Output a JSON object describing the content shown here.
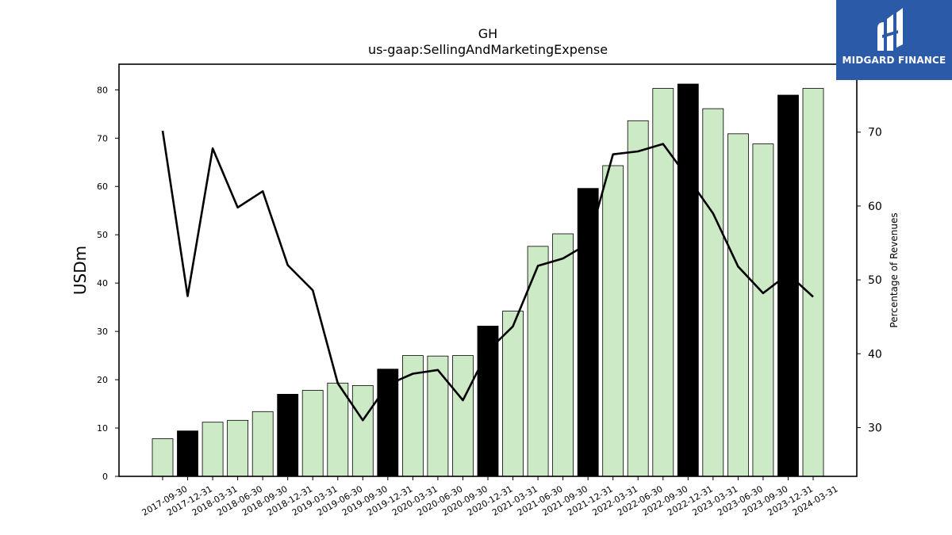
{
  "chart_data": {
    "type": "bar",
    "title": "GH",
    "subtitle": "us-gaap:SellingAndMarketingExpense",
    "ylabel": "USDm",
    "y2label": "Percentage of Revenues",
    "ylim": [
      0,
      85.3
    ],
    "y2lim": [
      23.4,
      79.2
    ],
    "yticks": [
      0,
      10,
      20,
      30,
      40,
      50,
      60,
      70,
      80
    ],
    "y2ticks": [
      30,
      40,
      50,
      60,
      70
    ],
    "categories": [
      "2017-09-30",
      "2017-12-31",
      "2018-03-31",
      "2018-06-30",
      "2018-09-30",
      "2018-12-31",
      "2019-03-31",
      "2019-06-30",
      "2019-09-30",
      "2019-12-31",
      "2020-03-31",
      "2020-06-30",
      "2020-09-30",
      "2020-12-31",
      "2021-03-31",
      "2021-06-30",
      "2021-09-30",
      "2021-12-31",
      "2022-03-31",
      "2022-06-30",
      "2022-09-30",
      "2022-12-31",
      "2023-03-31",
      "2023-06-30",
      "2023-09-30",
      "2023-12-31",
      "2024-03-31"
    ],
    "series": [
      {
        "type": "bar",
        "values": [
          7.8,
          9.4,
          11.2,
          11.6,
          13.4,
          17.0,
          17.8,
          19.3,
          18.8,
          22.2,
          25.0,
          24.9,
          25.0,
          31.1,
          34.2,
          47.6,
          50.2,
          59.6,
          64.3,
          73.6,
          80.3,
          81.2,
          76.1,
          70.9,
          68.8,
          78.9,
          80.3
        ],
        "highlight": [
          false,
          true,
          false,
          false,
          false,
          true,
          false,
          false,
          false,
          true,
          false,
          false,
          false,
          true,
          false,
          false,
          false,
          true,
          false,
          false,
          false,
          true,
          false,
          false,
          false,
          true,
          false
        ]
      },
      {
        "type": "line",
        "axis": "right",
        "values": [
          70.2,
          47.8,
          67.8,
          59.8,
          62.0,
          52.0,
          48.6,
          36.0,
          31.0,
          35.8,
          37.3,
          37.8,
          33.7,
          40.4,
          43.7,
          51.9,
          52.9,
          54.9,
          67.0,
          67.4,
          68.4,
          63.8,
          59.0,
          51.8,
          48.2,
          50.8,
          47.7
        ]
      }
    ],
    "colors": {
      "bar": "#cdeac6",
      "bar_highlight": "#000000",
      "bar_edge": "#000000",
      "line": "#000000"
    },
    "legend": "none",
    "grid": false
  },
  "logo": {
    "text": "MIDGARD FINANCE",
    "background": "#2b5aa8"
  }
}
